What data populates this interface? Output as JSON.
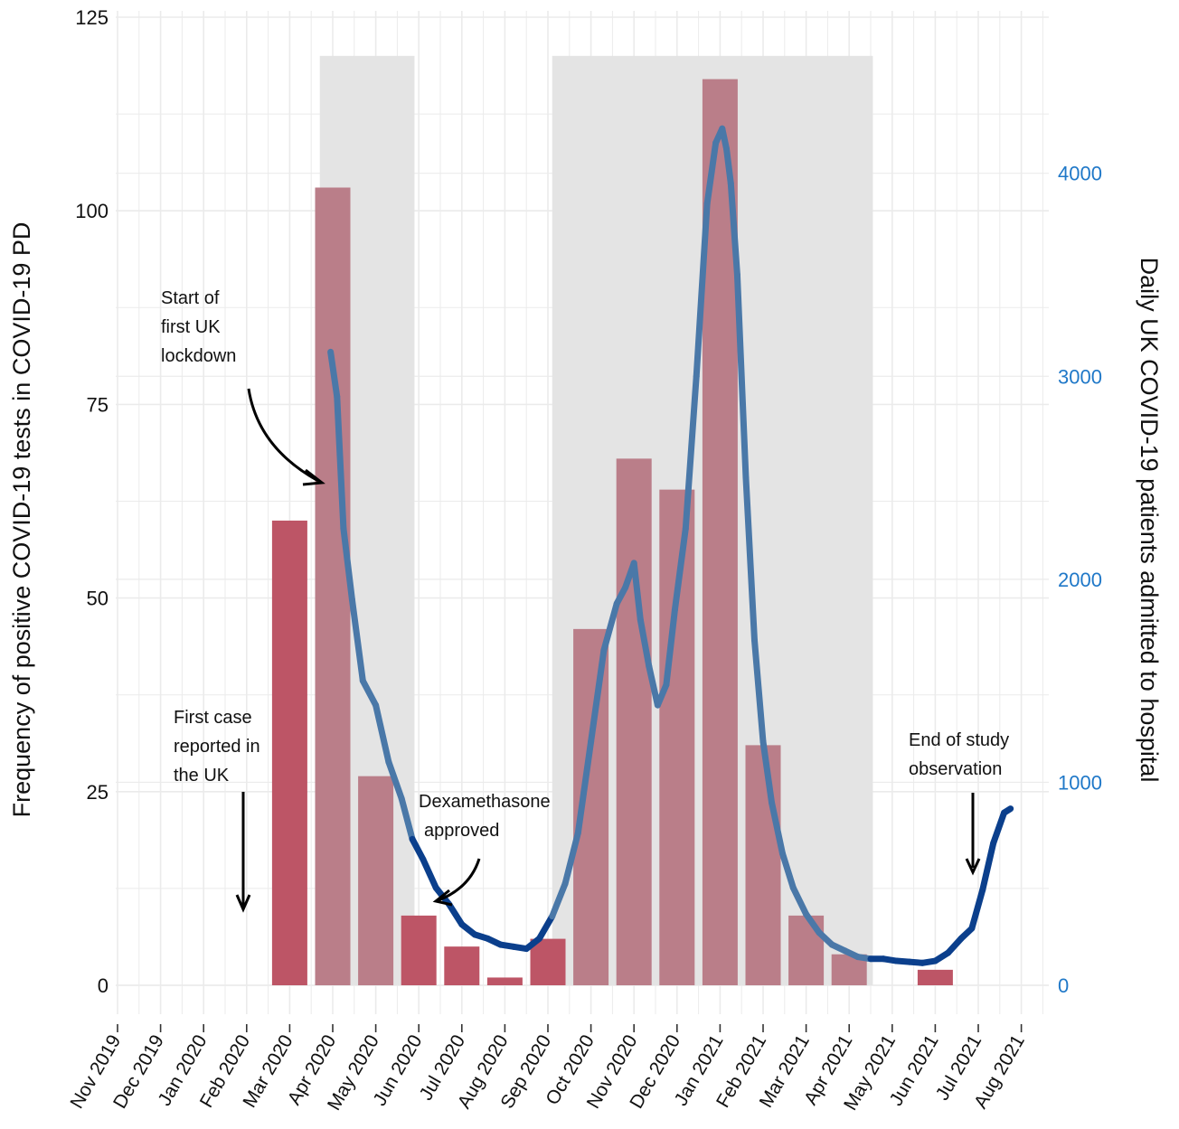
{
  "chart_data": {
    "type": "bar",
    "title": "",
    "ylabel": "Frequency of positive COVID-19 tests in COVID-19 PD",
    "y2label": "Daily UK COVID-19 patients admitted to hospital",
    "ylim": [
      0,
      125
    ],
    "y2lim": [
      0,
      4769
    ],
    "yticks": [
      0,
      25,
      50,
      75,
      100,
      125
    ],
    "y2ticks": [
      0,
      1000,
      2000,
      3000,
      4000
    ],
    "x_tick_labels": [
      "Nov 2019",
      "Dec 2019",
      "Jan 2020",
      "Feb 2020",
      "Mar 2020",
      "Apr 2020",
      "May 2020",
      "Jun 2020",
      "Jul 2020",
      "Aug 2020",
      "Sep 2020",
      "Oct 2020",
      "Nov 2020",
      "Dec 2020",
      "Jan 2021",
      "Feb 2021",
      "Mar 2021",
      "Apr 2021",
      "May 2021",
      "Jun 2021",
      "Jul 2021",
      "Aug 2021"
    ],
    "grid": true,
    "shaded_periods": [
      {
        "start": 4.7,
        "end": 6.9,
        "top": 120
      },
      {
        "start": 10.1,
        "end": 17.55,
        "top": 120
      }
    ],
    "series": [
      {
        "type": "bar",
        "bar_center": [
          4.0,
          5.0,
          6.0,
          7.0,
          8.0,
          9.0,
          10.0,
          11.0,
          12.0,
          13.0,
          14.0,
          15.0,
          16.0,
          17.0,
          18.0,
          19.0
        ],
        "values": [
          60,
          103,
          27,
          9,
          5,
          1,
          6,
          46,
          68,
          64,
          117,
          31,
          9,
          4,
          0,
          2
        ]
      },
      {
        "type": "line",
        "axis": "right",
        "x": [
          4.95,
          5.1,
          5.25,
          5.45,
          5.7,
          6.0,
          6.3,
          6.6,
          6.85,
          7.1,
          7.4,
          7.7,
          8.0,
          8.3,
          8.6,
          8.9,
          9.2,
          9.5,
          9.8,
          10.1,
          10.4,
          10.7,
          11.0,
          11.3,
          11.6,
          11.8,
          12.0,
          12.15,
          12.35,
          12.55,
          12.75,
          12.95,
          13.2,
          13.45,
          13.7,
          13.9,
          14.05,
          14.15,
          14.25,
          14.4,
          14.6,
          14.8,
          15.0,
          15.2,
          15.45,
          15.7,
          16.0,
          16.3,
          16.6,
          16.9,
          17.2,
          17.5,
          17.8,
          18.1,
          18.4,
          18.7,
          19.0,
          19.3,
          19.6,
          19.85,
          20.1,
          20.35,
          20.6,
          20.75
        ],
        "values": [
          3120,
          2900,
          2250,
          1900,
          1500,
          1380,
          1100,
          920,
          720,
          620,
          480,
          400,
          300,
          250,
          230,
          200,
          190,
          180,
          230,
          340,
          500,
          750,
          1200,
          1650,
          1880,
          1960,
          2080,
          1800,
          1570,
          1380,
          1480,
          1850,
          2250,
          3000,
          3850,
          4150,
          4220,
          4120,
          3950,
          3500,
          2500,
          1700,
          1200,
          900,
          650,
          480,
          350,
          260,
          200,
          170,
          140,
          130,
          130,
          120,
          115,
          110,
          120,
          160,
          230,
          280,
          470,
          700,
          850,
          870
        ]
      }
    ],
    "annotations": [
      {
        "lines": [
          "Start of",
          "first UK",
          "lockdown"
        ]
      },
      {
        "lines": [
          "First case",
          "reported in",
          "the UK"
        ]
      },
      {
        "lines": [
          "Dexamethasone",
          "approved"
        ]
      },
      {
        "lines": [
          "End of study",
          "observation"
        ]
      }
    ],
    "colors": {
      "bar_bright": "#bd5566",
      "bar_muted": "#ba7e89",
      "line_light": "#4a78a8",
      "line_dark": "#0b3f8c",
      "shade": "#e4e4e4",
      "grid": "#ebebeb",
      "right_axis": "#1f78c8"
    }
  }
}
